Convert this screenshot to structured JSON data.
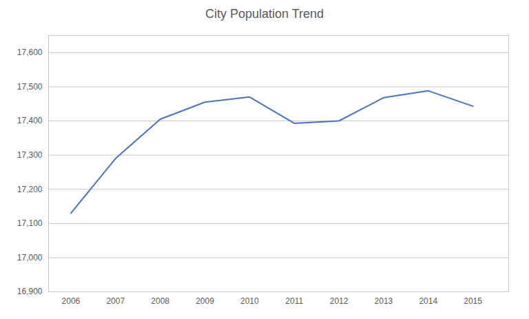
{
  "chart_data": {
    "type": "line",
    "title": "City Population Trend",
    "x": [
      2006,
      2007,
      2008,
      2009,
      2010,
      2011,
      2012,
      2013,
      2014,
      2015
    ],
    "values": [
      17130,
      17290,
      17405,
      17455,
      17470,
      17393,
      17400,
      17468,
      17488,
      17443
    ],
    "color": "#4472C4",
    "xlim": [
      2005.5,
      2015.8
    ],
    "xticks": [
      2006,
      2007,
      2008,
      2009,
      2010,
      2011,
      2012,
      2013,
      2014,
      2015
    ],
    "ylim": [
      16900,
      17650
    ],
    "yticks": [
      {
        "value": 16900,
        "label": "16,900"
      },
      {
        "value": 17000,
        "label": "17,000"
      },
      {
        "value": 17100,
        "label": "17,100"
      },
      {
        "value": 17200,
        "label": "17,200"
      },
      {
        "value": 17300,
        "label": "17,300"
      },
      {
        "value": 17400,
        "label": "17,400"
      },
      {
        "value": 17500,
        "label": "17,500"
      },
      {
        "value": 17600,
        "label": "17,600"
      }
    ],
    "grid": true
  }
}
